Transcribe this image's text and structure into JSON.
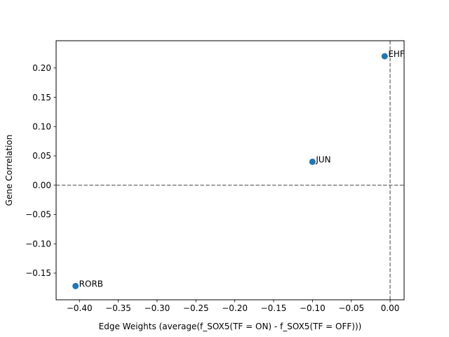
{
  "chart_data": {
    "type": "scatter",
    "title": "",
    "xlabel": "Edge Weights (average(f_SOX5(TF = ON) - f_SOX5(TF = OFF)))",
    "ylabel": "Gene Correlation",
    "xlim": [
      -0.43,
      0.018
    ],
    "ylim": [
      -0.1955,
      0.2465
    ],
    "xticks": [
      -0.4,
      -0.35,
      -0.3,
      -0.25,
      -0.2,
      -0.15,
      -0.1,
      -0.05,
      0.0
    ],
    "xtick_labels": [
      "−0.40",
      "−0.35",
      "−0.30",
      "−0.25",
      "−0.20",
      "−0.15",
      "−0.10",
      "−0.05",
      "0.00"
    ],
    "yticks": [
      -0.15,
      -0.1,
      -0.05,
      0.0,
      0.05,
      0.1,
      0.15,
      0.2
    ],
    "ytick_labels": [
      "−0.15",
      "−0.10",
      "−0.05",
      "0.00",
      "0.05",
      "0.10",
      "0.15",
      "0.20"
    ],
    "points": [
      {
        "label": "EHF",
        "x": -0.007,
        "y": 0.22
      },
      {
        "label": "JUN",
        "x": -0.1,
        "y": 0.04
      },
      {
        "label": "RORB",
        "x": -0.405,
        "y": -0.172
      }
    ],
    "reference_lines": {
      "x": 0.0,
      "y": 0.0,
      "style": "dashed"
    },
    "grid": false,
    "point_color": "#1f77b4",
    "reference_line_color": "#808080"
  }
}
